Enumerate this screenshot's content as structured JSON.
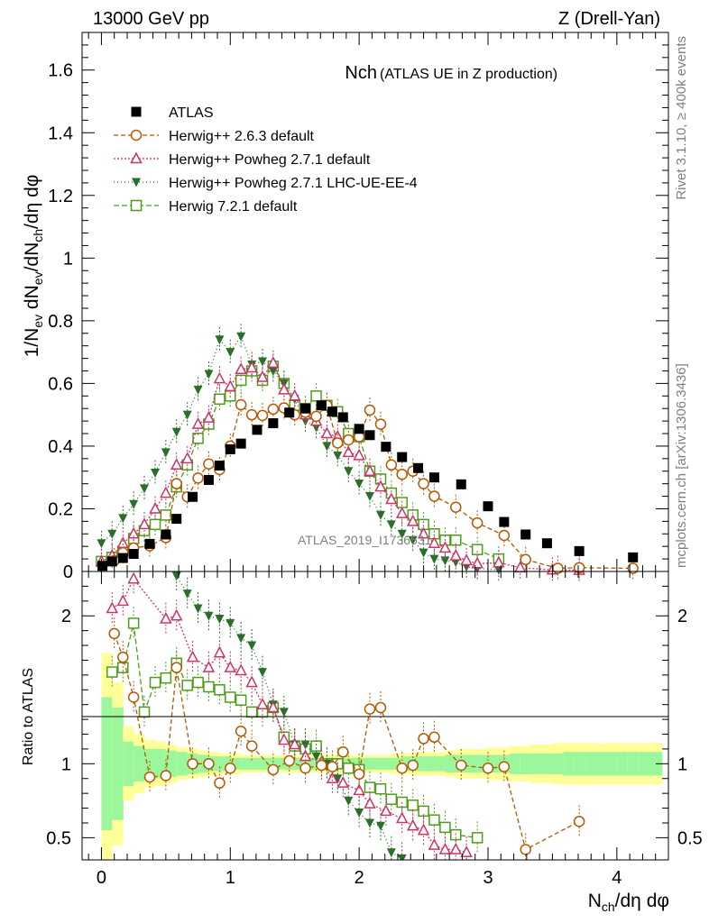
{
  "chart_data": {
    "type": "scatter",
    "header_left": "13000 GeV pp",
    "header_right": "Z (Drell-Yan)",
    "title_main": "Nch",
    "title_sub": "(ATLAS UE in Z production)",
    "watermark": "ATLAS_2019_I1736531",
    "side_label_top": "Rivet 3.1.10, ≥ 400k events",
    "side_label_bottom": "mcplots.cern.ch [arXiv:1306.3436]",
    "ylabel_ratio": "Ratio to ATLAS",
    "x_range": [
      -0.15,
      4.4
    ],
    "y_range_top": [
      0,
      1.72
    ],
    "y_range_ratio": [
      0.35,
      2.3
    ],
    "x_ticks": [
      {
        "v": 0,
        "label": "0"
      },
      {
        "v": 1,
        "label": "1"
      },
      {
        "v": 2,
        "label": "2"
      },
      {
        "v": 3,
        "label": "3"
      },
      {
        "v": 4,
        "label": "4"
      }
    ],
    "y_ticks_top": [
      {
        "v": 0,
        "label": "0"
      },
      {
        "v": 0.2,
        "label": "0.2"
      },
      {
        "v": 0.4,
        "label": "0.4"
      },
      {
        "v": 0.6,
        "label": "0.6"
      },
      {
        "v": 0.8,
        "label": "0.8"
      },
      {
        "v": 1.0,
        "label": "1"
      },
      {
        "v": 1.2,
        "label": "1.2"
      },
      {
        "v": 1.4,
        "label": "1.4"
      },
      {
        "v": 1.6,
        "label": "1.6"
      }
    ],
    "y_ticks_ratio": [
      {
        "v": 0.5,
        "label": "0.5"
      },
      {
        "v": 1,
        "label": "1"
      },
      {
        "v": 2,
        "label": "2"
      }
    ],
    "series": [
      {
        "name": "ATLAS",
        "color": "#000000",
        "marker": "square-filled",
        "dash": "",
        "x": [
          0.008,
          0.083,
          0.167,
          0.25,
          0.375,
          0.5,
          0.583,
          0.708,
          0.833,
          0.917,
          1.0,
          1.083,
          1.208,
          1.333,
          1.458,
          1.583,
          1.708,
          1.792,
          1.875,
          2.0,
          2.083,
          2.208,
          2.333,
          2.458,
          2.583,
          2.792,
          3.0,
          3.125,
          3.292,
          3.458,
          3.708,
          4.125
        ],
        "y": [
          0.018,
          0.032,
          0.043,
          0.056,
          0.088,
          0.118,
          0.168,
          0.238,
          0.292,
          0.338,
          0.39,
          0.408,
          0.452,
          0.473,
          0.507,
          0.52,
          0.53,
          0.51,
          0.492,
          0.455,
          0.435,
          0.398,
          0.365,
          0.33,
          0.3,
          0.278,
          0.208,
          0.158,
          0.118,
          0.09,
          0.065,
          0.045
        ]
      },
      {
        "name": "Herwig++ 2.6.3 default",
        "color": "#b35900",
        "marker": "circle-open",
        "dash": "5,3",
        "x": [
          0.1,
          0.167,
          0.25,
          0.375,
          0.5,
          0.583,
          0.667,
          0.75,
          0.833,
          0.917,
          1.0,
          1.083,
          1.167,
          1.25,
          1.333,
          1.417,
          1.5,
          1.583,
          1.667,
          1.75,
          1.833,
          1.917,
          2.0,
          2.083,
          2.167,
          2.25,
          2.333,
          2.417,
          2.5,
          2.583,
          2.75,
          2.917,
          3.125,
          3.292,
          3.542,
          3.708,
          4.125
        ],
        "y": [
          0.035,
          0.06,
          0.075,
          0.082,
          0.108,
          0.28,
          0.238,
          0.298,
          0.343,
          0.325,
          0.4,
          0.532,
          0.5,
          0.498,
          0.518,
          0.522,
          0.5,
          0.508,
          0.495,
          0.53,
          0.41,
          0.42,
          0.43,
          0.515,
          0.47,
          0.34,
          0.31,
          0.32,
          0.28,
          0.24,
          0.205,
          0.155,
          0.115,
          0.038,
          0.01,
          0.012,
          0.01
        ]
      },
      {
        "name": "Herwig++ Powheg 2.7.1 default",
        "color": "#cc3366",
        "marker": "triangle-open",
        "dash": "2,2",
        "x": [
          0.0,
          0.083,
          0.167,
          0.25,
          0.333,
          0.417,
          0.5,
          0.583,
          0.667,
          0.75,
          0.833,
          0.917,
          1.0,
          1.083,
          1.167,
          1.25,
          1.333,
          1.417,
          1.5,
          1.583,
          1.667,
          1.75,
          1.833,
          1.917,
          2.0,
          2.083,
          2.167,
          2.25,
          2.333,
          2.417,
          2.5,
          2.583,
          2.667,
          2.75,
          2.833,
          2.917,
          3.083,
          3.25,
          3.5,
          3.708
        ],
        "y": [
          0.032,
          0.05,
          0.09,
          0.12,
          0.15,
          0.2,
          0.25,
          0.34,
          0.36,
          0.47,
          0.49,
          0.615,
          0.59,
          0.645,
          0.65,
          0.62,
          0.665,
          0.58,
          0.56,
          0.5,
          0.48,
          0.44,
          0.43,
          0.38,
          0.37,
          0.32,
          0.27,
          0.23,
          0.185,
          0.16,
          0.12,
          0.09,
          0.075,
          0.05,
          0.035,
          0.025,
          0.028,
          0.012,
          0.005,
          0.004
        ]
      },
      {
        "name": "Herwig++ Powheg 2.7.1 LHC-UE-EE-4",
        "color": "#2a6e2a",
        "marker": "triangle-down-filled",
        "dash": "1,3",
        "x": [
          0.0,
          0.083,
          0.167,
          0.25,
          0.333,
          0.417,
          0.5,
          0.583,
          0.667,
          0.75,
          0.833,
          0.917,
          1.0,
          1.083,
          1.167,
          1.25,
          1.333,
          1.417,
          1.5,
          1.583,
          1.667,
          1.75,
          1.833,
          1.917,
          2.0,
          2.083,
          2.167,
          2.25,
          2.333,
          2.417,
          2.5,
          2.583,
          2.667,
          2.75,
          2.833,
          2.917,
          3.083
        ],
        "y": [
          0.09,
          0.12,
          0.17,
          0.215,
          0.265,
          0.315,
          0.38,
          0.445,
          0.5,
          0.58,
          0.63,
          0.74,
          0.7,
          0.75,
          0.66,
          0.67,
          0.64,
          0.6,
          0.55,
          0.48,
          0.46,
          0.4,
          0.37,
          0.32,
          0.28,
          0.24,
          0.18,
          0.15,
          0.12,
          0.1,
          0.06,
          0.04,
          0.035,
          0.03,
          0.015,
          0.01,
          0.005
        ]
      },
      {
        "name": "Herwig 7.2.1 default",
        "color": "#4c9e1a",
        "marker": "square-open",
        "dash": "6,3",
        "x": [
          0.0,
          0.083,
          0.167,
          0.25,
          0.333,
          0.417,
          0.5,
          0.583,
          0.667,
          0.75,
          0.833,
          0.917,
          1.0,
          1.083,
          1.167,
          1.25,
          1.333,
          1.417,
          1.5,
          1.583,
          1.667,
          1.75,
          1.833,
          1.917,
          2.0,
          2.083,
          2.167,
          2.25,
          2.333,
          2.417,
          2.5,
          2.583,
          2.667,
          2.75,
          2.917,
          3.083
        ],
        "y": [
          0.032,
          0.045,
          0.065,
          0.105,
          0.13,
          0.15,
          0.18,
          0.27,
          0.34,
          0.425,
          0.47,
          0.55,
          0.56,
          0.61,
          0.64,
          0.61,
          0.655,
          0.6,
          0.53,
          0.52,
          0.56,
          0.53,
          0.51,
          0.44,
          0.43,
          0.32,
          0.295,
          0.25,
          0.22,
          0.18,
          0.15,
          0.12,
          0.1,
          0.1,
          0.07,
          0.04
        ]
      }
    ],
    "ratio_series": [
      {
        "name": "Herwig++ 2.6.3 default",
        "x": [
          0.1,
          0.167,
          0.25,
          0.375,
          0.5,
          0.583,
          0.708,
          0.833,
          0.917,
          1.0,
          1.083,
          1.167,
          1.333,
          1.458,
          1.583,
          1.708,
          1.792,
          1.875,
          2.0,
          2.083,
          2.167,
          2.333,
          2.417,
          2.5,
          2.583,
          2.792,
          3.0,
          3.125,
          3.292,
          3.708
        ],
        "y": [
          1.88,
          1.72,
          1.45,
          0.91,
          0.92,
          1.65,
          1.0,
          1.0,
          0.87,
          0.97,
          1.22,
          1.12,
          0.96,
          1.02,
          0.97,
          0.99,
          0.98,
          1.08,
          0.93,
          1.37,
          1.38,
          0.97,
          0.99,
          1.17,
          1.18,
          0.99,
          0.97,
          0.98,
          0.42,
          0.61
        ]
      },
      {
        "name": "Herwig++ Powheg 2.7.1 default",
        "x": [
          0.083,
          0.167,
          0.25,
          0.5,
          0.583,
          0.708,
          0.833,
          0.917,
          1.0,
          1.083,
          1.167,
          1.25,
          1.333,
          1.417,
          1.5,
          1.583,
          1.708,
          1.792,
          1.875,
          2.0,
          2.083,
          2.208,
          2.333,
          2.417,
          2.5,
          2.583,
          2.667,
          2.75,
          2.833
        ],
        "y": [
          2.05,
          2.1,
          2.25,
          1.98,
          2.0,
          1.72,
          1.65,
          1.75,
          1.65,
          1.63,
          1.55,
          1.4,
          1.38,
          1.16,
          1.13,
          1.05,
          1.01,
          0.9,
          0.87,
          0.82,
          0.73,
          0.68,
          0.63,
          0.58,
          0.55,
          0.45,
          0.42,
          0.42,
          0.4
        ]
      },
      {
        "name": "Herwig++ Powheg 2.7.1 LHC-UE-EE-4",
        "x": [
          0.5,
          0.583,
          0.667,
          0.75,
          0.833,
          0.917,
          1.0,
          1.083,
          1.167,
          1.25,
          1.333,
          1.417,
          1.5,
          1.583,
          1.667,
          1.75,
          1.833,
          1.917,
          2.0,
          2.083,
          2.167,
          2.25,
          2.333
        ],
        "y": [
          2.38,
          2.27,
          2.15,
          2.05,
          2.0,
          1.98,
          1.95,
          1.85,
          1.8,
          1.62,
          1.4,
          1.35,
          1.13,
          1.13,
          1.05,
          1.0,
          0.9,
          0.75,
          0.67,
          0.6,
          0.58,
          0.4,
          0.36
        ]
      },
      {
        "name": "Herwig 7.2.1 default",
        "x": [
          0.083,
          0.167,
          0.25,
          0.333,
          0.417,
          0.5,
          0.583,
          0.667,
          0.75,
          0.833,
          0.917,
          1.0,
          1.083,
          1.167,
          1.25,
          1.333,
          1.417,
          1.5,
          1.583,
          1.667,
          1.75,
          1.833,
          1.917,
          2.0,
          2.083,
          2.167,
          2.25,
          2.333,
          2.417,
          2.5,
          2.583,
          2.667,
          2.75,
          2.917
        ],
        "y": [
          1.62,
          1.65,
          1.95,
          1.35,
          1.55,
          1.58,
          1.68,
          1.53,
          1.55,
          1.52,
          1.5,
          1.45,
          1.43,
          1.35,
          1.35,
          1.38,
          1.18,
          1.12,
          1.1,
          1.12,
          1.0,
          1.0,
          0.97,
          0.96,
          0.84,
          0.83,
          0.76,
          0.74,
          0.72,
          0.68,
          0.62,
          0.57,
          0.52,
          0.5
        ]
      }
    ],
    "uncertainty_bands": {
      "bin_edges": [
        0.0,
        0.083,
        0.167,
        0.25,
        0.333,
        0.417,
        0.5,
        0.583,
        0.667,
        0.75,
        0.833,
        0.917,
        1.0,
        1.083,
        1.167,
        1.25,
        1.333,
        1.417,
        1.5,
        1.583,
        1.667,
        1.75,
        1.833,
        1.917,
        2.0,
        2.083,
        2.167,
        2.25,
        2.333,
        2.417,
        2.5,
        2.583,
        2.667,
        2.75,
        2.833,
        2.917,
        3.0,
        3.083,
        3.167,
        3.25,
        3.333,
        3.417,
        3.5,
        3.583,
        3.667,
        3.75,
        3.833,
        3.917,
        4.0,
        4.083,
        4.167,
        4.25,
        4.35
      ],
      "stat_halfwidth": [
        0.45,
        0.38,
        0.15,
        0.12,
        0.1,
        0.1,
        0.09,
        0.08,
        0.07,
        0.06,
        0.05,
        0.05,
        0.04,
        0.04,
        0.04,
        0.04,
        0.04,
        0.04,
        0.04,
        0.04,
        0.04,
        0.04,
        0.04,
        0.04,
        0.04,
        0.04,
        0.04,
        0.04,
        0.05,
        0.05,
        0.05,
        0.05,
        0.06,
        0.06,
        0.06,
        0.06,
        0.06,
        0.06,
        0.07,
        0.07,
        0.07,
        0.07,
        0.07,
        0.08,
        0.08,
        0.08,
        0.08,
        0.08,
        0.08,
        0.08,
        0.08,
        0.08
      ],
      "total_halfwidth": [
        0.75,
        0.55,
        0.25,
        0.2,
        0.16,
        0.15,
        0.13,
        0.11,
        0.1,
        0.09,
        0.08,
        0.07,
        0.07,
        0.06,
        0.06,
        0.06,
        0.06,
        0.06,
        0.06,
        0.06,
        0.06,
        0.06,
        0.06,
        0.06,
        0.06,
        0.06,
        0.06,
        0.07,
        0.07,
        0.08,
        0.08,
        0.08,
        0.09,
        0.1,
        0.1,
        0.1,
        0.11,
        0.11,
        0.12,
        0.12,
        0.13,
        0.13,
        0.14,
        0.14,
        0.14,
        0.14,
        0.14,
        0.14,
        0.14,
        0.14,
        0.14,
        0.14
      ],
      "stat_color": "#9cf79c",
      "total_color": "#ffff99"
    }
  }
}
